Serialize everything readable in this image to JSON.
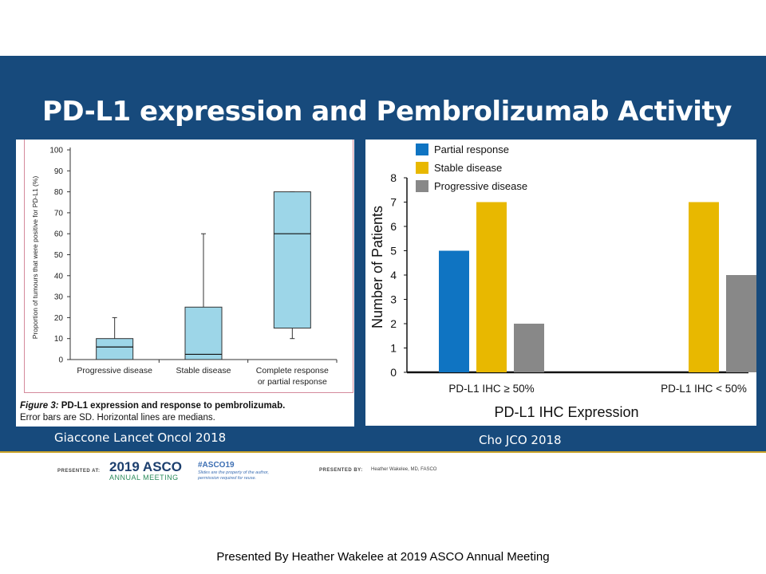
{
  "slide": {
    "title": "PD-L1 expression and Pembrolizumab Activity",
    "left_source": "Giaccone Lancet Oncol 2018",
    "right_source": "Cho JCO 2018",
    "bottom_credit": "Presented By Heather Wakelee at 2019 ASCO Annual Meeting"
  },
  "footer": {
    "presented_at": "PRESENTED AT:",
    "asco_year": "2019 ASCO",
    "asco_sub": "ANNUAL MEETING",
    "hashtag": "#ASCO19",
    "slides_note_1": "Slides are the property of the author,",
    "slides_note_2": "permission required for reuse.",
    "presented_by_label": "PRESENTED BY:",
    "presenter": "Heather Wakelee, MD, FASCO"
  },
  "caption": {
    "fig_label": "Figure 3:",
    "fig_title": " PD-L1 expression and response to pembrolizumab.",
    "fig_note": "Error bars are SD. Horizontal lines are medians."
  },
  "colors": {
    "band": "#174a7c",
    "box_fill": "#9dd6e8",
    "partial": "#0f74c2",
    "stable": "#e8b800",
    "progressive": "#888888"
  },
  "chart_data": [
    {
      "type": "box",
      "ylabel": "Proportion of tumours that were positive for PD-L1 (%)",
      "ylim": [
        0,
        100
      ],
      "yticks": [
        "0",
        "10",
        "20",
        "30",
        "40",
        "50",
        "60",
        "70",
        "80",
        "90",
        "100"
      ],
      "categories": [
        {
          "label": [
            "Progressive disease"
          ],
          "whisker_low": 0,
          "q1": 0,
          "median": 6,
          "q3": 10,
          "whisker_high": 20
        },
        {
          "label": [
            "Stable disease"
          ],
          "whisker_low": 0,
          "q1": 0,
          "median": 2.5,
          "q3": 25,
          "whisker_high": 60
        },
        {
          "label": [
            "Complete response",
            "or partial response"
          ],
          "whisker_low": 10,
          "q1": 15,
          "median": 60,
          "q3": 80,
          "whisker_high": 80
        }
      ],
      "grid": false
    },
    {
      "type": "bar",
      "xlabel": "PD-L1 IHC Expression",
      "ylabel": "Number of Patients",
      "ylim": [
        0,
        8
      ],
      "yticks": [
        "0",
        "1",
        "2",
        "3",
        "4",
        "5",
        "6",
        "7",
        "8"
      ],
      "categories": [
        "PD-L1 IHC ≥ 50%",
        "PD-L1 IHC < 50%"
      ],
      "series": [
        {
          "name": "Partial response",
          "values": [
            5,
            0
          ]
        },
        {
          "name": "Stable disease",
          "values": [
            7,
            7
          ]
        },
        {
          "name": "Progressive disease",
          "values": [
            2,
            4
          ]
        }
      ],
      "legend": "top-left",
      "grid": false
    }
  ]
}
